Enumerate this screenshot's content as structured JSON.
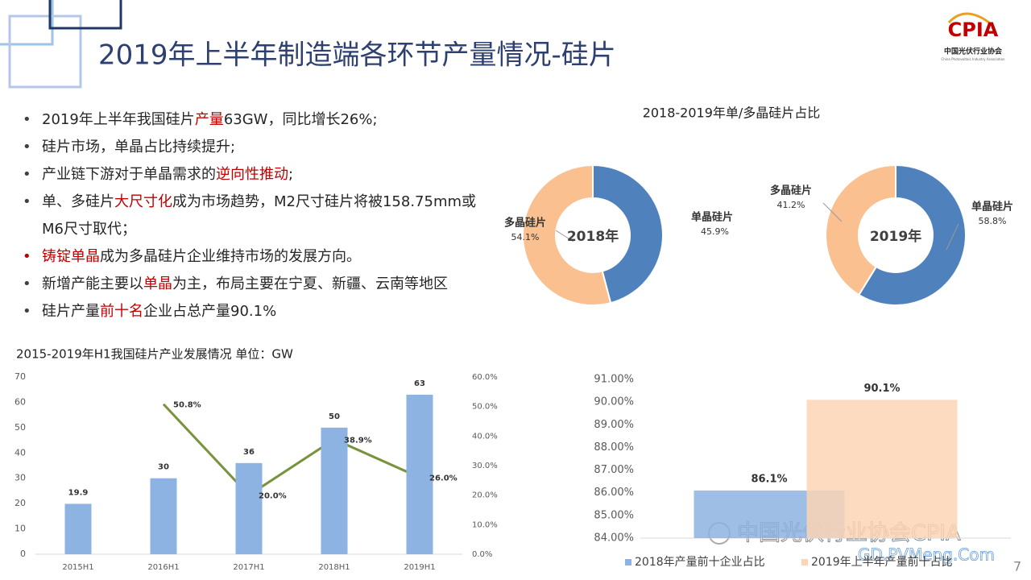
{
  "slide": {
    "title": "2019年上半年制造端各环节产量情况-硅片",
    "page_number": "7",
    "logo": {
      "name": "CPIA",
      "org": "中国光伏行业协会",
      "org_en": "China Photovoltaic Industry Association"
    },
    "watermark": [
      "中国光伏行业协会CPIA",
      "GD.PVMeng.Com"
    ],
    "donut_title": "2018-2019年单/多晶硅片占比",
    "bullets": [
      [
        "2019年上半年我国硅片",
        {
          "text": "产量",
          "color": "#c00000"
        },
        "63GW，同比增长26%;"
      ],
      [
        "硅片市场，单晶占比持续提升;"
      ],
      [
        "产业链下游对于单晶需求的",
        {
          "text": "逆向性推动",
          "color": "#c00000"
        },
        ";"
      ],
      [
        "单、多硅片",
        {
          "text": "大尺寸化",
          "color": "#c00000"
        },
        "成为市场趋势，M2尺寸硅片将被158.75mm或M6尺寸取代；"
      ],
      [
        {
          "text": "铸锭单晶",
          "color": "#c00000"
        },
        "成为多晶硅片企业维持市场的发展方向。"
      ],
      [
        "新增产能主要以",
        {
          "text": "单晶",
          "color": "#c00000"
        },
        "为主，布局主要在宁夏、新疆、云南等地区"
      ],
      [
        "硅片产量",
        {
          "text": "前十名",
          "color": "#c00000"
        },
        "企业占总产量90.1%"
      ]
    ]
  },
  "chart_data": [
    {
      "type": "pie",
      "hole": true,
      "center_label": "2018年",
      "categories": [
        "单晶硅片",
        "多晶硅片"
      ],
      "values": [
        45.9,
        54.1
      ],
      "value_labels": [
        "45.9%",
        "54.1%"
      ],
      "colors": [
        "#4f81bd",
        "#fac090"
      ]
    },
    {
      "type": "pie",
      "hole": true,
      "center_label": "2019年",
      "categories": [
        "单晶硅片",
        "多晶硅片"
      ],
      "values": [
        58.8,
        41.2
      ],
      "value_labels": [
        "58.8%",
        "41.2%"
      ],
      "colors": [
        "#4f81bd",
        "#fac090"
      ]
    },
    {
      "type": "bar",
      "title": "2015-2019年H1我国硅片产业发展情况 单位：GW",
      "categories": [
        "2015H1",
        "2016H1",
        "2017H1",
        "2018H1",
        "2019H1"
      ],
      "series": [
        {
          "color": "#8db3e2",
          "values": [
            19.9,
            30,
            36,
            50,
            63
          ]
        },
        {
          "type": "line",
          "axis": "y2",
          "color": "#77933c",
          "values": [
            null,
            50.8,
            20.0,
            38.9,
            26.0
          ],
          "value_labels": [
            null,
            "50.8%",
            "20.0%",
            "38.9%",
            "26.0%"
          ]
        }
      ],
      "ylim": [
        0,
        70
      ],
      "yticks": [
        0,
        10,
        20,
        30,
        40,
        50,
        60,
        70
      ],
      "y2lim": [
        0,
        60
      ],
      "y2ticks": [
        {
          "value": 0,
          "label": "0.0%"
        },
        {
          "value": 10,
          "label": "10.0%"
        },
        {
          "value": 20,
          "label": "20.0%"
        },
        {
          "value": 30,
          "label": "30.0%"
        },
        {
          "value": 40,
          "label": "40.0%"
        },
        {
          "value": 50,
          "label": "50.0%"
        },
        {
          "value": 60,
          "label": "60.0%"
        }
      ],
      "grid": false
    },
    {
      "type": "bar",
      "categories": [
        null
      ],
      "series": [
        {
          "name": "2018年产量前十企业占比",
          "color": "#8db3e2",
          "values": [
            86.1
          ],
          "value_labels": [
            "86.1%"
          ]
        },
        {
          "name": "2019年上半年产量前十占比",
          "color": "#fbd5b5",
          "values": [
            90.1
          ],
          "value_labels": [
            "90.1%"
          ]
        }
      ],
      "ylim": [
        84,
        91
      ],
      "yticks": [
        {
          "value": 84,
          "label": "84.00%"
        },
        {
          "value": 85,
          "label": "85.00%"
        },
        {
          "value": 86,
          "label": "86.00%"
        },
        {
          "value": 87,
          "label": "87.00%"
        },
        {
          "value": 88,
          "label": "88.00%"
        },
        {
          "value": 89,
          "label": "89.00%"
        },
        {
          "value": 90,
          "label": "90.00%"
        },
        {
          "value": 91,
          "label": "91.00%"
        }
      ],
      "grid": false,
      "legend": "bottom"
    }
  ]
}
